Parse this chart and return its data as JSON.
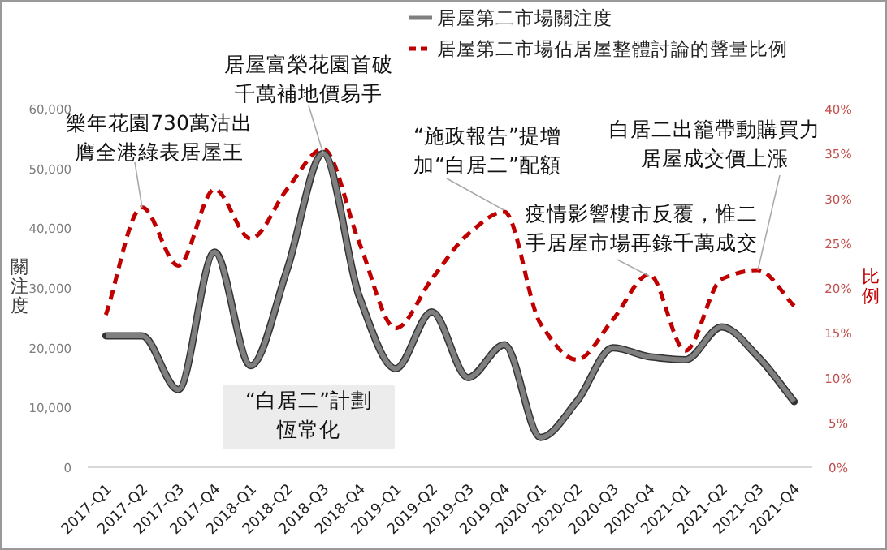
{
  "chart_data": {
    "type": "line",
    "categories": [
      "2017-Q1",
      "2017-Q2",
      "2017-Q3",
      "2017-Q4",
      "2018-Q1",
      "2018-Q2",
      "2018-Q3",
      "2018-Q4",
      "2019-Q1",
      "2019-Q2",
      "2019-Q3",
      "2019-Q4",
      "2020-Q1",
      "2020-Q2",
      "2020-Q3",
      "2020-Q4",
      "2021-Q1",
      "2021-Q2",
      "2021-Q3",
      "2021-Q4"
    ],
    "series": [
      {
        "name": "居屋第二市場關注度",
        "color": "#7f7f7f",
        "line_style": "solid",
        "values": [
          22000,
          22000,
          13000,
          36000,
          17000,
          33000,
          52500,
          28500,
          16500,
          26000,
          15000,
          20500,
          5000,
          11000,
          20000,
          18500,
          18000,
          23500,
          18500,
          11000
        ]
      },
      {
        "name": "居屋第二市場佔居屋整體討論的聲量比例",
        "color": "#c00000",
        "axis": "y2",
        "line_style": "dashed",
        "values": [
          17,
          29,
          22.5,
          31,
          25.5,
          31,
          35.5,
          25,
          15.5,
          21,
          26,
          28.5,
          16,
          12,
          16.5,
          21.5,
          13,
          21,
          22,
          18
        ]
      }
    ],
    "ylabel": "關注度",
    "y2label": "比例",
    "ylim": [
      0,
      60000
    ],
    "yticks": [
      0,
      {
        "value": 10000,
        "label": "10,000"
      },
      {
        "value": 20000,
        "label": "20,000"
      },
      {
        "value": 30000,
        "label": "30,000"
      },
      {
        "value": 40000,
        "label": "40,000"
      },
      {
        "value": 50000,
        "label": "50,000"
      },
      {
        "value": 60000,
        "label": "60,000"
      }
    ],
    "y2lim": [
      0,
      40
    ],
    "y2ticks": [
      {
        "value": 0,
        "label": "0%"
      },
      {
        "value": 5,
        "label": "5%"
      },
      {
        "value": 10,
        "label": "10%"
      },
      {
        "value": 15,
        "label": "15%"
      },
      {
        "value": 20,
        "label": "20%"
      },
      {
        "value": 25,
        "label": "25%"
      },
      {
        "value": 30,
        "label": "30%"
      },
      {
        "value": 35,
        "label": "35%"
      },
      {
        "value": 40,
        "label": "40%"
      }
    ],
    "legend": "top",
    "grid": false,
    "annotations": [
      {
        "text": "居屋富榮花園首破千萬補地價易手",
        "x": "2018-Q3",
        "y": 52500
      },
      {
        "text": "樂年花園730萬沽出膺全港綠表居屋王",
        "x": "2017-Q2",
        "y": 43500
      },
      {
        "text": "“施政報告”提增加“白居二”配額",
        "x": "2019-Q4",
        "y": 43000
      },
      {
        "text": "白居二出籠帶動購買力居屋成交價上漲",
        "x": "2021-Q3",
        "y": 33000
      },
      {
        "text": "疫情影響樓市反覆，惟二手居屋市場再錄千萬成交",
        "x": "2020-Q4",
        "y": 32000
      },
      "“白居二”計劃恆常化"
    ]
  }
}
